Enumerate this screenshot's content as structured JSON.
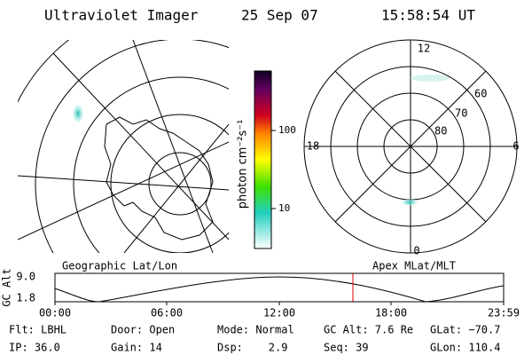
{
  "header": {
    "instrument": "Ultraviolet Imager",
    "date": "25 Sep 07",
    "time": "15:58:54 UT"
  },
  "colorbar": {
    "label": "photon cm⁻²s⁻¹",
    "ticks": [
      "100",
      "10"
    ]
  },
  "polar": {
    "mlt_labels": [
      "12",
      "18",
      "6",
      "0"
    ],
    "mlat_labels": [
      "80",
      "70",
      "60"
    ]
  },
  "altitude": {
    "left_label": "Geographic Lat/Lon",
    "right_label": "Apex MLat/MLT",
    "axis_label": "GC Alt",
    "yticks": [
      "9.0",
      "1.8"
    ],
    "xticks": [
      "00:00",
      "06:00",
      "12:00",
      "18:00",
      "23:59"
    ]
  },
  "footer": {
    "rows": [
      [
        "Flt: LBHL",
        "Door: Open",
        "Mode: Normal",
        "GC Alt: 7.6 Re",
        "GLat: −70.7"
      ],
      [
        "IP: 36.0",
        "Gain: 14",
        "Dsp:    2.9",
        "Seq: 39",
        "GLon: 110.4"
      ]
    ]
  }
}
